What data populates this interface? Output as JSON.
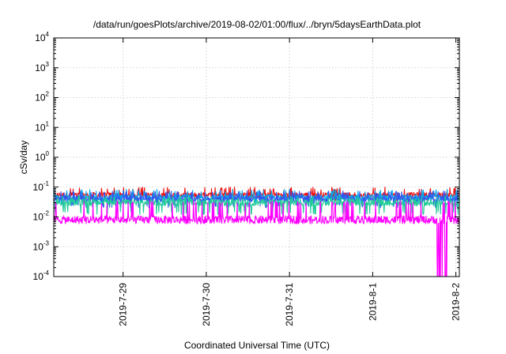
{
  "chart_data": {
    "type": "line",
    "title": "/data/run/goesPlots/archive/2019-08-02/01:00/flux/../bryn/5daysEarthData.plot",
    "xlabel": "Coordinated Universal Time (UTC)",
    "ylabel": "cSv/day",
    "yscale": "log",
    "ylim": [
      0.0001,
      10000
    ],
    "yticks": [
      {
        "base": "10",
        "exp": "-4"
      },
      {
        "base": "10",
        "exp": "-3"
      },
      {
        "base": "10",
        "exp": "-2"
      },
      {
        "base": "10",
        "exp": "-1"
      },
      {
        "base": "10",
        "exp": "0"
      },
      {
        "base": "10",
        "exp": "1"
      },
      {
        "base": "10",
        "exp": "2"
      },
      {
        "base": "10",
        "exp": "3"
      },
      {
        "base": "10",
        "exp": "4"
      }
    ],
    "xlim": [
      "2019-07-28 04:00",
      "2019-08-02 01:00"
    ],
    "xticks": [
      {
        "label": "2019-7-29",
        "date": "2019-07-29"
      },
      {
        "label": "2019-7-30",
        "date": "2019-07-30"
      },
      {
        "label": "2019-7-31",
        "date": "2019-07-31"
      },
      {
        "label": "2019-8-1",
        "date": "2019-08-01"
      },
      {
        "label": "2019-8-2",
        "date": "2019-08-02"
      }
    ],
    "grid": true,
    "series": [
      {
        "color": "#ee1111",
        "y_typical": 0.055,
        "y_low": 0.035,
        "y_high": 0.1
      },
      {
        "color": "#00aaee",
        "y_typical": 0.045,
        "y_low": 0.025,
        "y_high": 0.085
      },
      {
        "color": "#3355ee",
        "y_typical": 0.04,
        "y_low": 0.02,
        "y_high": 0.075
      },
      {
        "color": "#22cc99",
        "y_typical": 0.03,
        "y_low": 0.012,
        "y_high": 0.05
      },
      {
        "color": "#ff00ff",
        "y_typical": 0.008,
        "y_low": 0.006,
        "y_high": 0.035,
        "gap_date": "2019-08-01 20:00",
        "gap_min": 0.0001
      }
    ]
  }
}
